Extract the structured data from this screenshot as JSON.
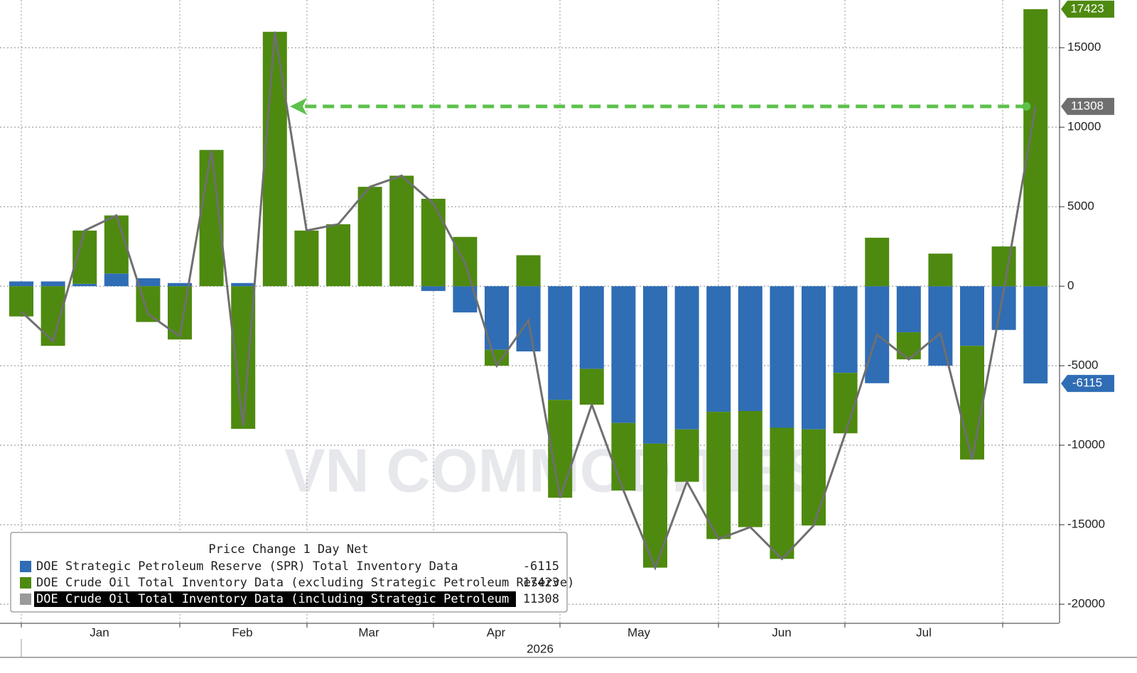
{
  "chart_data": {
    "type": "bar",
    "stacked": true,
    "legend_title": "Price Change 1 Day Net",
    "watermark": "VN COMMODITIES",
    "month_labels": [
      "Jan",
      "Feb",
      "Mar",
      "Apr",
      "May",
      "Jun",
      "Jul"
    ],
    "year_label": "2026",
    "categories": [
      null,
      null,
      null,
      null,
      null,
      null,
      null,
      null,
      null,
      null,
      null,
      null,
      null,
      null,
      null,
      null,
      null,
      null,
      null,
      null,
      null,
      null,
      null,
      null,
      null,
      null,
      null,
      null,
      null,
      null,
      null,
      null,
      null
    ],
    "series": [
      {
        "name": "DOE Strategic Petroleum Reserve (SPR) Total Inventory Data",
        "color": "#2f6db5",
        "values": [
          300,
          300,
          150,
          800,
          500,
          200,
          0,
          200,
          0,
          0,
          0,
          0,
          0,
          -300,
          -1650,
          -4000,
          -4100,
          -7150,
          -5200,
          -8600,
          -9900,
          -9000,
          -7900,
          -7850,
          -8900,
          -9000,
          -5450,
          -6100,
          -2900,
          -5000,
          -3750,
          -2750,
          -6115
        ]
      },
      {
        "name": "DOE Crude Oil Total Inventory Data (excluding Strategic Petroleum Reserve)",
        "color": "#4e8a0f",
        "values": [
          -1900,
          -3750,
          3350,
          3650,
          -2250,
          -3350,
          8570,
          -8970,
          16000,
          3500,
          3900,
          6250,
          6950,
          5500,
          3100,
          -1000,
          1950,
          -6150,
          -2250,
          -4250,
          -7800,
          -3300,
          -8000,
          -7300,
          -8250,
          -6050,
          -3800,
          3050,
          -1700,
          2050,
          -7150,
          2500,
          17423
        ]
      },
      {
        "name": "DOE Crude Oil Total Inventory Data (including Strategic Petroleum Reserve)",
        "color": "#6f6f6f",
        "kind": "line",
        "values": [
          -1600,
          -3450,
          3500,
          4450,
          -1750,
          -3150,
          8550,
          -8800,
          16000,
          3500,
          3900,
          6250,
          6950,
          5200,
          1450,
          -5000,
          -2150,
          -13300,
          -7450,
          -12850,
          -17700,
          -12300,
          -15900,
          -15150,
          -17150,
          -15050,
          -9250,
          -3050,
          -4600,
          -2950,
          -10900,
          -250,
          11308
        ]
      }
    ],
    "ylim": [
      -21200,
      18000
    ],
    "yticks": [
      -20000,
      -15000,
      -10000,
      -5000,
      0,
      5000,
      10000,
      15000
    ],
    "grid": true
  }
}
